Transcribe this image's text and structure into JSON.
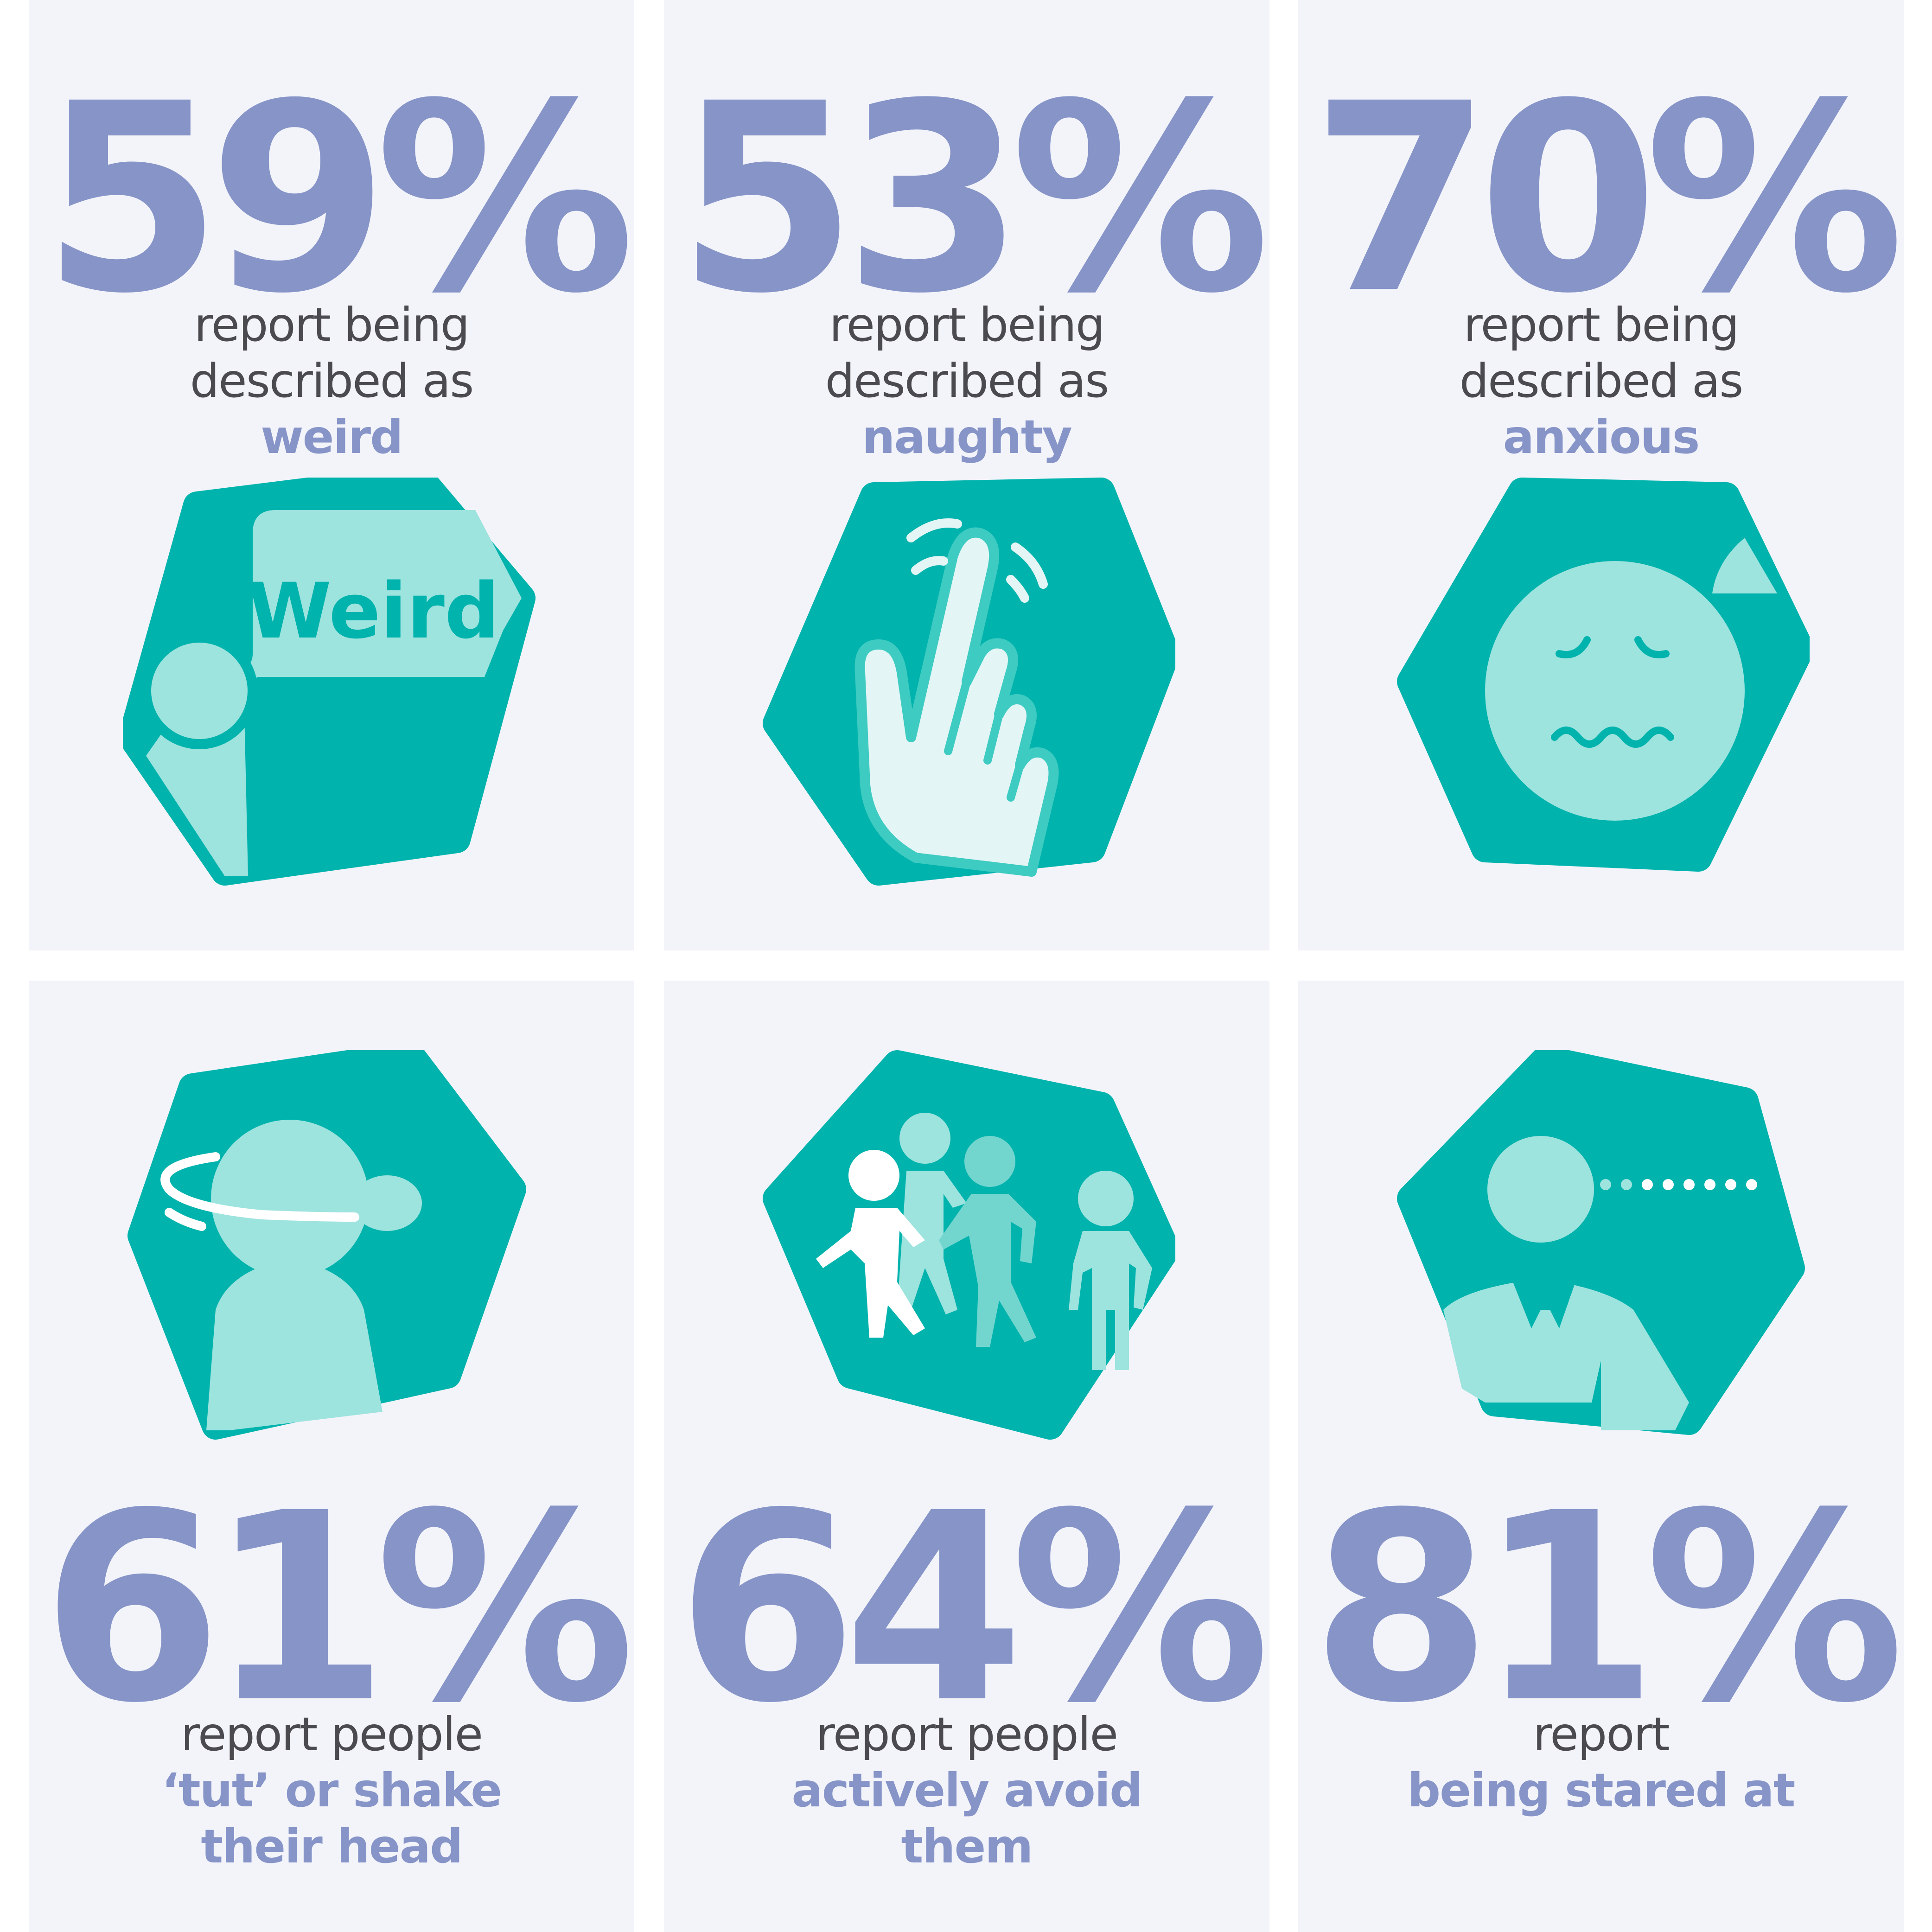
{
  "colors": {
    "card_bg": "#f3f4fa",
    "accent": "#8694c8",
    "text": "#4b4b4f",
    "teal": "#00b3ad",
    "light_teal": "#9de3de",
    "pale": "#e3f5f4"
  },
  "stats": [
    {
      "percent": "59%",
      "lines": [
        "report being",
        "described as"
      ],
      "highlight": [
        "weird"
      ],
      "icon": "weird-speech-bubble-icon",
      "bubble_text": "Weird"
    },
    {
      "percent": "53%",
      "lines": [
        "report being",
        "described as"
      ],
      "highlight": [
        "naughty"
      ],
      "icon": "pointing-hand-icon"
    },
    {
      "percent": "70%",
      "lines": [
        "report being",
        "described as"
      ],
      "highlight": [
        "anxious"
      ],
      "icon": "anxious-face-icon"
    },
    {
      "percent": "61%",
      "lines": [
        "report people"
      ],
      "highlight": [
        "‘tut’ or shake",
        "their head"
      ],
      "icon": "head-shake-icon"
    },
    {
      "percent": "64%",
      "lines": [
        "report people"
      ],
      "highlight": [
        "actively avoid",
        "them"
      ],
      "icon": "walking-people-icon"
    },
    {
      "percent": "81%",
      "lines": [
        "report"
      ],
      "highlight": [
        "being stared at"
      ],
      "icon": "staring-person-icon"
    }
  ]
}
